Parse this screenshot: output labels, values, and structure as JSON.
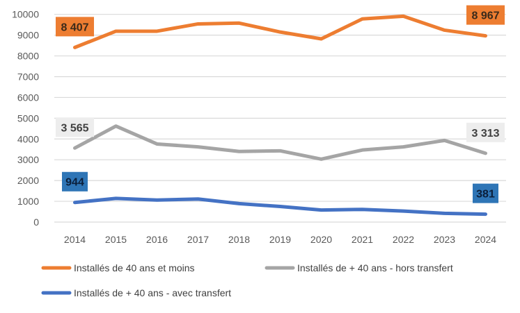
{
  "chart_data": {
    "type": "line",
    "title": "",
    "xlabel": "",
    "ylabel": "",
    "categories": [
      "2014",
      "2015",
      "2016",
      "2017",
      "2018",
      "2019",
      "2020",
      "2021",
      "2022",
      "2023",
      "2024"
    ],
    "ylim": [
      0,
      10000
    ],
    "yticks": [
      "0",
      "1000",
      "2000",
      "3000",
      "4000",
      "5000",
      "6000",
      "7000",
      "8000",
      "9000",
      "10000"
    ],
    "grid": true,
    "legend_position": "bottom",
    "series": [
      {
        "name": "Installés de 40 ans et moins",
        "color": "#ED7D31",
        "values": [
          8407,
          9190,
          9190,
          9540,
          9580,
          9150,
          8820,
          9780,
          9910,
          9240,
          8967
        ],
        "labels": {
          "first": "8 407",
          "last": "8 967"
        }
      },
      {
        "name": "Installés de + 40 ans - hors transfert",
        "color": "#A5A5A5",
        "values": [
          3565,
          4620,
          3760,
          3620,
          3400,
          3430,
          3030,
          3470,
          3620,
          3930,
          3313
        ],
        "labels": {
          "first": "3 565",
          "last": "3 313"
        }
      },
      {
        "name": "Installés de + 40 ans - avec transfert",
        "color": "#4472C4",
        "values": [
          944,
          1140,
          1060,
          1110,
          890,
          750,
          580,
          610,
          530,
          420,
          381
        ],
        "labels": {
          "first": "944",
          "last": "381"
        }
      }
    ]
  }
}
